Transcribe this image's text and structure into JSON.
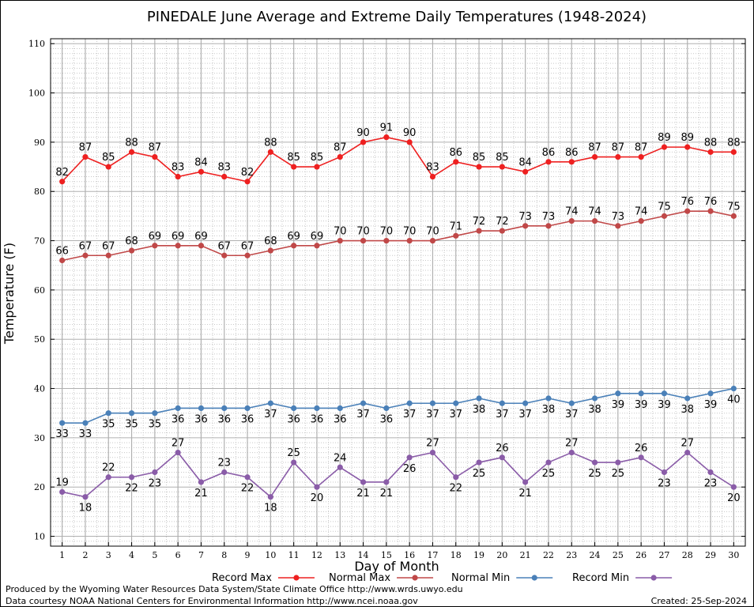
{
  "chart_data": {
    "type": "line",
    "title": "PINEDALE June Average and Extreme Daily Temperatures (1948-2024)",
    "xlabel": "Day of Month",
    "ylabel": "Temperature (F)",
    "ylim": [
      8,
      111
    ],
    "yticks": [
      10,
      20,
      30,
      40,
      50,
      60,
      70,
      80,
      90,
      100,
      110
    ],
    "x": [
      1,
      2,
      3,
      4,
      5,
      6,
      7,
      8,
      9,
      10,
      11,
      12,
      13,
      14,
      15,
      16,
      17,
      18,
      19,
      20,
      21,
      22,
      23,
      24,
      25,
      26,
      27,
      28,
      29,
      30
    ],
    "grid": true,
    "series": [
      {
        "name": "Record Max",
        "color": "#ee2020",
        "values": [
          82,
          87,
          85,
          88,
          87,
          83,
          84,
          83,
          82,
          88,
          85,
          85,
          87,
          90,
          91,
          90,
          83,
          86,
          85,
          85,
          84,
          86,
          86,
          87,
          87,
          87,
          89,
          89,
          88,
          88
        ]
      },
      {
        "name": "Normal Max",
        "color": "#c04848",
        "values": [
          66,
          67,
          67,
          68,
          69,
          69,
          69,
          67,
          67,
          68,
          69,
          69,
          70,
          70,
          70,
          70,
          70,
          71,
          72,
          72,
          73,
          73,
          74,
          74,
          73,
          74,
          75,
          76,
          76,
          75
        ]
      },
      {
        "name": "Normal Min",
        "color": "#4a80b8",
        "values": [
          33,
          33,
          35,
          35,
          35,
          36,
          36,
          36,
          36,
          37,
          36,
          36,
          36,
          37,
          36,
          37,
          37,
          37,
          38,
          37,
          37,
          38,
          37,
          38,
          39,
          39,
          39,
          38,
          39,
          40
        ]
      },
      {
        "name": "Record Min",
        "color": "#8a5ca8",
        "values": [
          19,
          18,
          22,
          22,
          23,
          27,
          21,
          23,
          22,
          18,
          25,
          20,
          24,
          21,
          21,
          26,
          27,
          22,
          25,
          26,
          21,
          25,
          27,
          25,
          25,
          26,
          23,
          27,
          23,
          20
        ]
      }
    ],
    "legend_position": "bottom"
  },
  "footer": {
    "produced_by": "Produced by the Wyoming Water Resources Data System/State Climate Office http://www.wrds.uwyo.edu",
    "courtesy": "Data courtesy NOAA National Centers for Environmental Information http://www.ncei.noaa.gov",
    "created": "Created:  25-Sep-2024"
  }
}
